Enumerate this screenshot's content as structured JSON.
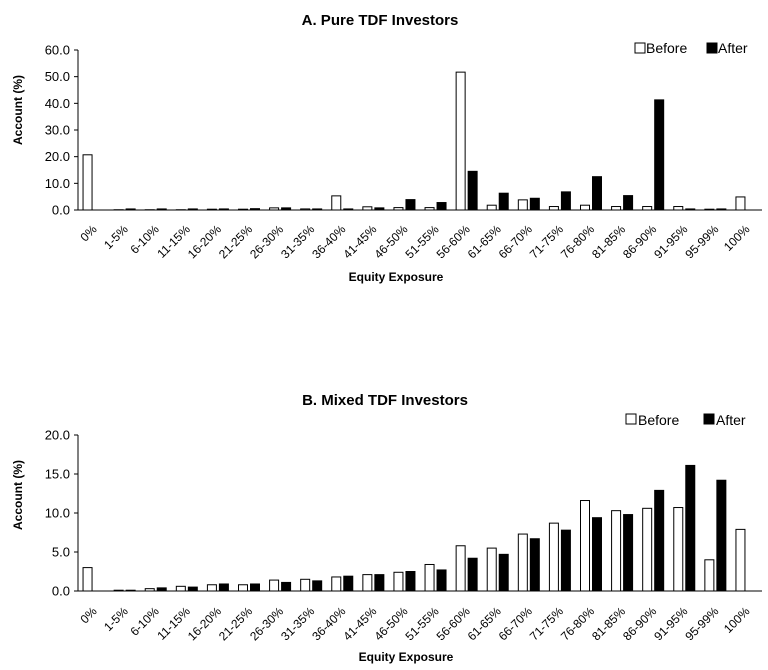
{
  "colors": {
    "before": "#ffffff",
    "after": "#000000",
    "stroke": "#000000",
    "axis": "#000000"
  },
  "chart_data": [
    {
      "type": "bar",
      "title": "A. Pure TDF Investors",
      "xlabel": "Equity Exposure",
      "ylabel": "Account (%)",
      "ylim": [
        0,
        60
      ],
      "yticks": [
        "0.0",
        "10.0",
        "20.0",
        "30.0",
        "40.0",
        "50.0",
        "60.0"
      ],
      "legend_position": "top-right",
      "grid": false,
      "categories": [
        "0%",
        "1-5%",
        "6-10%",
        "11-15%",
        "16-20%",
        "21-25%",
        "26-30%",
        "31-35%",
        "36-40%",
        "41-45%",
        "46-50%",
        "51-55%",
        "56-60%",
        "61-65%",
        "66-70%",
        "71-75%",
        "76-80%",
        "81-85%",
        "86-90%",
        "91-95%",
        "95-99%",
        "100%"
      ],
      "series": [
        {
          "name": "Before",
          "values": [
            20.7,
            0.1,
            0.1,
            0.1,
            0.3,
            0.3,
            0.8,
            0.4,
            5.3,
            1.2,
            0.9,
            0.9,
            51.7,
            1.8,
            3.8,
            1.3,
            1.8,
            1.3,
            1.3,
            1.3,
            0.3,
            4.9
          ]
        },
        {
          "name": "After",
          "values": [
            0.0,
            0.4,
            0.4,
            0.4,
            0.4,
            0.5,
            0.8,
            0.4,
            0.4,
            0.8,
            3.9,
            2.8,
            14.5,
            6.3,
            4.4,
            6.8,
            12.5,
            5.4,
            41.3,
            0.4,
            0.4,
            0.0
          ]
        }
      ]
    },
    {
      "type": "bar",
      "title": "B. Mixed TDF Investors",
      "xlabel": "Equity Exposure",
      "ylabel": "Account (%)",
      "ylim": [
        0,
        20
      ],
      "yticks": [
        "0.0",
        "5.0",
        "10.0",
        "15.0",
        "20.0"
      ],
      "legend_position": "top-right",
      "grid": false,
      "categories": [
        "0%",
        "1-5%",
        "6-10%",
        "11-15%",
        "16-20%",
        "21-25%",
        "26-30%",
        "31-35%",
        "36-40%",
        "41-45%",
        "46-50%",
        "51-55%",
        "56-60%",
        "61-65%",
        "66-70%",
        "71-75%",
        "76-80%",
        "81-85%",
        "86-90%",
        "91-95%",
        "95-99%",
        "100%"
      ],
      "series": [
        {
          "name": "Before",
          "values": [
            3.0,
            0.1,
            0.3,
            0.6,
            0.8,
            0.8,
            1.4,
            1.5,
            1.8,
            2.1,
            2.4,
            3.4,
            5.8,
            5.5,
            7.3,
            8.7,
            11.6,
            10.3,
            10.6,
            10.7,
            4.0,
            7.9
          ]
        },
        {
          "name": "After",
          "values": [
            0.0,
            0.1,
            0.4,
            0.5,
            0.9,
            0.9,
            1.1,
            1.3,
            1.9,
            2.1,
            2.5,
            2.7,
            4.2,
            4.7,
            6.7,
            7.8,
            9.4,
            9.8,
            12.9,
            16.1,
            14.2,
            0.0
          ]
        }
      ]
    }
  ]
}
